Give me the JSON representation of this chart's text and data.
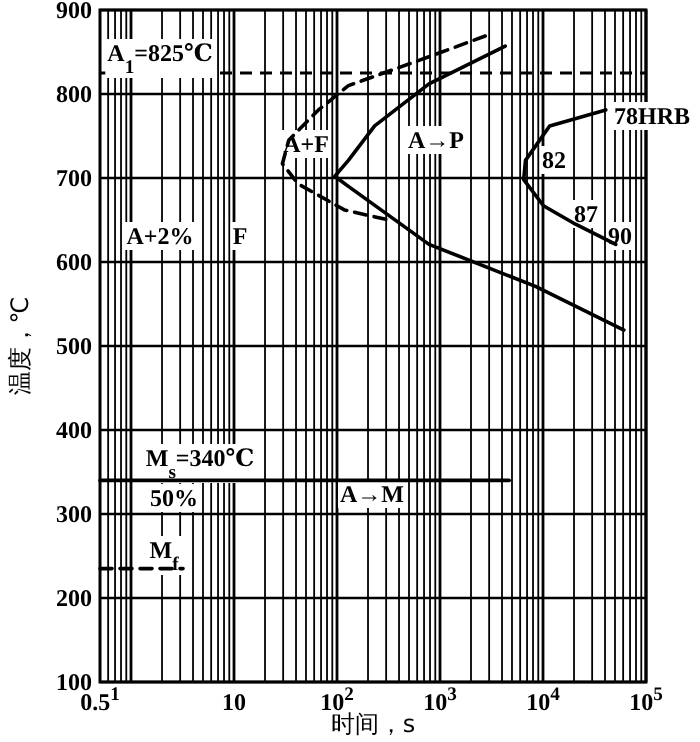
{
  "chart_data": {
    "type": "line",
    "xlabel": "时间，s",
    "ylabel": "温度，℃",
    "log": "x",
    "grid": true,
    "marker": "none",
    "xlim": [
      0.5,
      100000
    ],
    "ylim": [
      100,
      900
    ],
    "xticks": [
      {
        "value": 0.5,
        "label": "0.5$^{1}$"
      },
      10,
      {
        "value": 100,
        "label": "10$^{2}$"
      },
      {
        "value": 1000,
        "label": "10$^{3}$"
      },
      {
        "value": 10000,
        "label": "10$^{4}$"
      },
      {
        "value": 100000,
        "label": "10$^{5}$"
      }
    ],
    "yticks": [
      100,
      200,
      300,
      400,
      500,
      600,
      700,
      800,
      900
    ],
    "series": [
      {
        "color": "#000000",
        "line_style": "dashed",
        "x": [
          2750,
          624,
          129,
          66,
          34,
          29.5,
          42,
          118,
          318
        ],
        "values": [
          869,
          840,
          810,
          781,
          745,
          717,
          693,
          662,
          650
        ]
      },
      {
        "color": "#000000",
        "line_style": "solid",
        "x": [
          4300,
          782,
          232,
          129,
          95,
          129,
          782,
          8450,
          61000
        ],
        "values": [
          857,
          812,
          762,
          721,
          702,
          690,
          621,
          571,
          519
        ]
      },
      {
        "color": "#000000",
        "line_style": "solid",
        "x": [
          40700,
          11600,
          6760,
          6500,
          10100,
          20700,
          50900
        ],
        "values": [
          781,
          762,
          721,
          698,
          667,
          645,
          621
        ]
      },
      {
        "color": "#000000",
        "line_style": "solid",
        "x": [
          0.5,
          4700
        ],
        "values": [
          340,
          340
        ]
      },
      {
        "color": "#000000",
        "line_style": "dashed",
        "x": [
          0.5,
          3.2
        ],
        "values": [
          235,
          235
        ]
      }
    ],
    "ref_lines": [
      {
        "axis": "y",
        "value": 825,
        "label": "A$_{1}$=825℃",
        "line_style": "dashed",
        "color": "#000000"
      }
    ],
    "annotations": [
      "A+F",
      "A→P",
      "A+2%",
      "F",
      "78HRB",
      "82",
      "87",
      "90",
      "M$_{s}$=340℃",
      "50%",
      "A→M",
      "M$_{f}$"
    ]
  }
}
